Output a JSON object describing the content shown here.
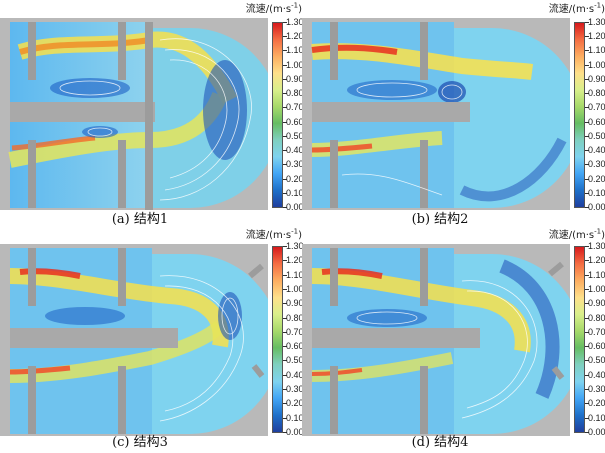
{
  "colorbar": {
    "title": "流速/(m·s",
    "title_exp": "-1",
    "title_close": ")",
    "ticks": [
      "1.30",
      "1.20",
      "1.10",
      "1.00",
      "0.90",
      "0.80",
      "0.70",
      "0.60",
      "0.50",
      "0.40",
      "0.30",
      "0.20",
      "0.10",
      "0.00"
    ],
    "colors": [
      "#d7191c",
      "#f46d43",
      "#fdae61",
      "#fee08b",
      "#d9ef8b",
      "#a6d96a",
      "#66bd63",
      "#7fd0c0",
      "#7fd3ef",
      "#42a5f5",
      "#1e70c9",
      "#1f3f9e"
    ]
  },
  "panels": [
    {
      "caption": "(a) 结构1"
    },
    {
      "caption": "(b) 结构2"
    },
    {
      "caption": "(c) 结构3"
    },
    {
      "caption": "(d) 结构4"
    }
  ]
}
